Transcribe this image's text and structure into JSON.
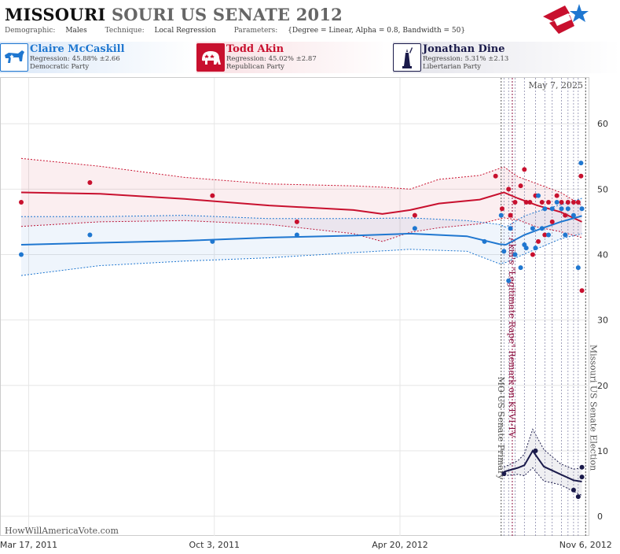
{
  "header": {
    "title_state": "MISSOURI",
    "title_rest": "SOURI US SENATE 2012",
    "demographic_label": "Demographic:",
    "demographic_value": "Males",
    "technique_label": "Technique:",
    "technique_value": "Local Regression",
    "parameters_label": "Parameters:",
    "parameters_value": "{Degree = Linear, Alpha = 0.8, Bandwidth = 50}"
  },
  "candidates": [
    {
      "name": "Claire McCaskill",
      "regression": "Regression: 45.88% ±2.66",
      "party": "Democratic Party",
      "color": "#1f77d0",
      "icon": "donkey-icon"
    },
    {
      "name": "Todd Akin",
      "regression": "Regression: 45.02% ±2.87",
      "party": "Republican Party",
      "color": "#c8102e",
      "icon": "elephant-icon"
    },
    {
      "name": "Jonathan Dine",
      "regression": "Regression: 5.31% ±2.13",
      "party": "Libertarian Party",
      "color": "#1a1a4a",
      "icon": "liberty-icon"
    }
  ],
  "chart_data": {
    "type": "scatter",
    "date_label": "May 7, 2025",
    "watermark": "HowWillAmericaVote.com",
    "x_axis": {
      "min": "2011-02-15",
      "max": "2012-11-10",
      "ticks": [
        "2011-03-17",
        "2011-10-03",
        "2012-04-20",
        "2012-11-06"
      ],
      "tick_labels": [
        "Mar 17, 2011",
        "Oct 3, 2011",
        "Apr 20, 2012",
        "Nov 6, 2012"
      ]
    },
    "y_axis": {
      "min": -3,
      "max": 67,
      "ticks": [
        0,
        10,
        20,
        30,
        40,
        50,
        60
      ],
      "side": "right"
    },
    "grid": true,
    "series": [
      {
        "name": "Todd Akin",
        "color": "#c8102e",
        "points": [
          [
            "2011-03-09",
            48
          ],
          [
            "2011-05-22",
            51
          ],
          [
            "2011-10-01",
            49
          ],
          [
            "2011-12-31",
            45
          ],
          [
            "2012-05-06",
            46
          ],
          [
            "2012-08-01",
            52
          ],
          [
            "2012-08-08",
            47
          ],
          [
            "2012-08-15",
            50
          ],
          [
            "2012-08-17",
            46
          ],
          [
            "2012-08-22",
            48
          ],
          [
            "2012-08-28",
            50.5
          ],
          [
            "2012-09-01",
            53
          ],
          [
            "2012-09-03",
            48
          ],
          [
            "2012-09-07",
            48
          ],
          [
            "2012-09-10",
            40
          ],
          [
            "2012-09-13",
            49
          ],
          [
            "2012-09-16",
            42
          ],
          [
            "2012-09-20",
            48
          ],
          [
            "2012-09-23",
            43
          ],
          [
            "2012-09-27",
            48
          ],
          [
            "2012-10-01",
            45
          ],
          [
            "2012-10-06",
            49
          ],
          [
            "2012-10-11",
            48
          ],
          [
            "2012-10-15",
            46
          ],
          [
            "2012-10-18",
            48
          ],
          [
            "2012-10-24",
            48
          ],
          [
            "2012-10-29",
            48
          ],
          [
            "2012-11-01",
            52
          ],
          [
            "2012-11-02",
            34.5
          ]
        ],
        "trend": [
          [
            "2011-03-09",
            49.5
          ],
          [
            "2011-06-01",
            49.3
          ],
          [
            "2011-09-01",
            48.5
          ],
          [
            "2011-12-01",
            47.5
          ],
          [
            "2012-03-01",
            46.8
          ],
          [
            "2012-04-01",
            46.2
          ],
          [
            "2012-05-01",
            46.8
          ],
          [
            "2012-06-01",
            47.8
          ],
          [
            "2012-07-15",
            48.4
          ],
          [
            "2012-08-10",
            49.5
          ],
          [
            "2012-08-25",
            48.6
          ],
          [
            "2012-09-15",
            47.5
          ],
          [
            "2012-10-10",
            46.5
          ],
          [
            "2012-11-02",
            45.0
          ]
        ],
        "band_upper": [
          [
            "2011-03-09",
            54.7
          ],
          [
            "2011-06-01",
            53.5
          ],
          [
            "2011-09-01",
            51.8
          ],
          [
            "2011-12-01",
            50.8
          ],
          [
            "2012-03-01",
            50.5
          ],
          [
            "2012-04-01",
            50.3
          ],
          [
            "2012-05-01",
            50.0
          ],
          [
            "2012-06-01",
            51.5
          ],
          [
            "2012-07-15",
            52.1
          ],
          [
            "2012-08-10",
            53.4
          ],
          [
            "2012-08-25",
            51.9
          ],
          [
            "2012-09-15",
            50.8
          ],
          [
            "2012-10-10",
            49.5
          ],
          [
            "2012-11-02",
            47.5
          ]
        ],
        "band_lower": [
          [
            "2011-03-09",
            44.3
          ],
          [
            "2011-06-01",
            45.0
          ],
          [
            "2011-09-01",
            45.2
          ],
          [
            "2011-12-01",
            44.6
          ],
          [
            "2012-03-01",
            43.2
          ],
          [
            "2012-04-01",
            42.0
          ],
          [
            "2012-05-01",
            43.4
          ],
          [
            "2012-06-01",
            44.1
          ],
          [
            "2012-07-15",
            44.7
          ],
          [
            "2012-08-10",
            45.6
          ],
          [
            "2012-08-25",
            45.3
          ],
          [
            "2012-09-15",
            44.2
          ],
          [
            "2012-10-10",
            43.5
          ],
          [
            "2012-11-02",
            42.6
          ]
        ]
      },
      {
        "name": "Claire McCaskill",
        "color": "#1f77d0",
        "points": [
          [
            "2011-03-09",
            40
          ],
          [
            "2011-05-22",
            43
          ],
          [
            "2011-10-01",
            42
          ],
          [
            "2011-12-31",
            43
          ],
          [
            "2012-05-06",
            44
          ],
          [
            "2012-07-20",
            42
          ],
          [
            "2012-08-07",
            46
          ],
          [
            "2012-08-10",
            40.5
          ],
          [
            "2012-08-15",
            36
          ],
          [
            "2012-08-17",
            44
          ],
          [
            "2012-08-22",
            40
          ],
          [
            "2012-08-28",
            38
          ],
          [
            "2012-09-01",
            41.5
          ],
          [
            "2012-09-03",
            41
          ],
          [
            "2012-09-10",
            44
          ],
          [
            "2012-09-13",
            41
          ],
          [
            "2012-09-16",
            49
          ],
          [
            "2012-09-20",
            44
          ],
          [
            "2012-09-23",
            47
          ],
          [
            "2012-09-27",
            43
          ],
          [
            "2012-10-01",
            47
          ],
          [
            "2012-10-06",
            48
          ],
          [
            "2012-10-11",
            47
          ],
          [
            "2012-10-15",
            43
          ],
          [
            "2012-10-18",
            47
          ],
          [
            "2012-10-24",
            46
          ],
          [
            "2012-10-29",
            38
          ],
          [
            "2012-11-01",
            54
          ],
          [
            "2012-11-02",
            47
          ]
        ],
        "trend": [
          [
            "2011-03-09",
            41.5
          ],
          [
            "2011-06-01",
            41.8
          ],
          [
            "2011-09-01",
            42.1
          ],
          [
            "2011-12-01",
            42.6
          ],
          [
            "2012-03-01",
            42.9
          ],
          [
            "2012-05-01",
            43.2
          ],
          [
            "2012-07-01",
            42.8
          ],
          [
            "2012-08-05",
            41.6
          ],
          [
            "2012-08-12",
            41.5
          ],
          [
            "2012-09-01",
            43.0
          ],
          [
            "2012-09-20",
            44.0
          ],
          [
            "2012-10-10",
            45.0
          ],
          [
            "2012-11-02",
            45.9
          ]
        ],
        "band_upper": [
          [
            "2011-03-09",
            45.8
          ],
          [
            "2011-06-01",
            45.8
          ],
          [
            "2011-09-01",
            46.0
          ],
          [
            "2011-12-01",
            45.5
          ],
          [
            "2012-03-01",
            45.5
          ],
          [
            "2012-05-01",
            45.6
          ],
          [
            "2012-07-01",
            45.2
          ],
          [
            "2012-08-05",
            44.6
          ],
          [
            "2012-08-12",
            44.2
          ],
          [
            "2012-09-01",
            45.9
          ],
          [
            "2012-09-20",
            46.8
          ],
          [
            "2012-10-10",
            47.6
          ],
          [
            "2012-11-02",
            48.6
          ]
        ],
        "band_lower": [
          [
            "2011-03-09",
            36.8
          ],
          [
            "2011-06-01",
            38.3
          ],
          [
            "2011-09-01",
            39.0
          ],
          [
            "2011-12-01",
            39.5
          ],
          [
            "2012-03-01",
            40.3
          ],
          [
            "2012-05-01",
            40.8
          ],
          [
            "2012-07-01",
            40.5
          ],
          [
            "2012-08-05",
            38.6
          ],
          [
            "2012-08-12",
            38.8
          ],
          [
            "2012-09-01",
            40.1
          ],
          [
            "2012-09-20",
            41.2
          ],
          [
            "2012-10-10",
            42.4
          ],
          [
            "2012-11-02",
            43.2
          ]
        ]
      },
      {
        "name": "Jonathan Dine",
        "color": "#1a1a4a",
        "points": [
          [
            "2012-08-10",
            6.5
          ],
          [
            "2012-09-13",
            10
          ],
          [
            "2012-10-24",
            4
          ],
          [
            "2012-10-29",
            3
          ],
          [
            "2012-11-02",
            6
          ],
          [
            "2012-11-02",
            7.5
          ]
        ],
        "trend": [
          [
            "2012-08-10",
            6.8
          ],
          [
            "2012-08-25",
            7.4
          ],
          [
            "2012-09-01",
            7.8
          ],
          [
            "2012-09-10",
            10.0
          ],
          [
            "2012-09-22",
            7.6
          ],
          [
            "2012-10-10",
            6.4
          ],
          [
            "2012-10-24",
            5.5
          ],
          [
            "2012-11-02",
            5.3
          ]
        ],
        "band_upper": [
          [
            "2012-08-10",
            7.5
          ],
          [
            "2012-08-25",
            8.5
          ],
          [
            "2012-09-01",
            9.5
          ],
          [
            "2012-09-10",
            13.3
          ],
          [
            "2012-09-22",
            10.2
          ],
          [
            "2012-10-10",
            8.0
          ],
          [
            "2012-10-24",
            7.2
          ],
          [
            "2012-11-02",
            7.4
          ]
        ],
        "band_lower": [
          [
            "2012-08-10",
            6.2
          ],
          [
            "2012-08-25",
            6.4
          ],
          [
            "2012-09-01",
            6.2
          ],
          [
            "2012-09-10",
            7.4
          ],
          [
            "2012-09-22",
            5.4
          ],
          [
            "2012-10-10",
            4.8
          ],
          [
            "2012-10-24",
            3.8
          ],
          [
            "2012-11-02",
            3.2
          ]
        ]
      }
    ],
    "events": [
      {
        "date": "2012-08-07",
        "label": "MO US Senate Primary",
        "color": "#555555"
      },
      {
        "date": "2012-08-19",
        "label": "Akin's \"Legitimate Rape\" Remark on KTVI-TV",
        "color": "#8b1040"
      },
      {
        "date": "2012-11-06",
        "label": "Missouri US Senate Election",
        "color": "#555555"
      }
    ],
    "poll_markers": [
      "2012-08-10",
      "2012-08-15",
      "2012-08-22",
      "2012-09-01",
      "2012-09-13",
      "2012-09-23",
      "2012-10-01",
      "2012-10-11",
      "2012-10-18",
      "2012-10-24",
      "2012-10-29"
    ]
  }
}
